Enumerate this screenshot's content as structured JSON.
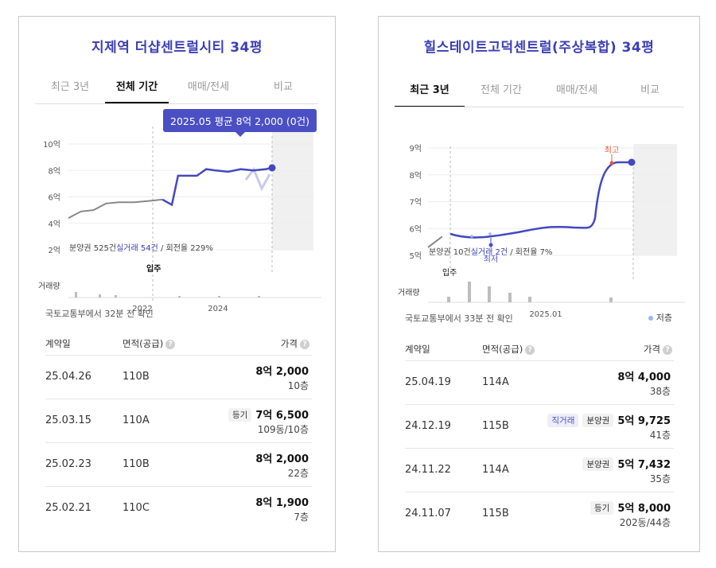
{
  "left": {
    "title": "지제역 더샵센트럴시티 34평",
    "tabs": [
      "최근 3년",
      "전체 기간",
      "매매/전세",
      "비교"
    ],
    "active_tab": 1,
    "tooltip": "2025.05 평균 8억 2,000 (0건)",
    "stats": {
      "presale": "분양권 525건",
      "actual": "실거래 54건",
      "turnover": " / 회전율 229%"
    },
    "volume_label": "거래량",
    "move_in_label": "입주",
    "source": "국토교통부에서 32분 전 확인",
    "table_headers": {
      "date": "계약일",
      "area": "면적(공급)",
      "price": "가격"
    },
    "rows": [
      {
        "date": "25.04.26",
        "area": "110B",
        "tag": "",
        "price": "8억 2,000",
        "floor": "10층"
      },
      {
        "date": "25.03.15",
        "area": "110A",
        "tag": "등기",
        "price": "7억 6,500",
        "floor": "109동/10층"
      },
      {
        "date": "25.02.23",
        "area": "110B",
        "tag": "",
        "price": "8억 2,000",
        "floor": "22층"
      },
      {
        "date": "25.02.21",
        "area": "110C",
        "tag": "",
        "price": "8억 1,900",
        "floor": "7층"
      }
    ]
  },
  "right": {
    "title": "힐스테이트고덕센트럴(주상복합) 34평",
    "tabs": [
      "최근 3년",
      "전체 기간",
      "매매/전세",
      "비교"
    ],
    "active_tab": 0,
    "stats": {
      "presale": "분양권 10건",
      "actual": "실거래 2건",
      "turnover": " / 회전율 7%"
    },
    "volume_label": "거래량",
    "move_in_label": "입주",
    "high_label": "최고",
    "low_label": "최저",
    "source": "국토교통부에서 33분 전 확인",
    "legend": "저층",
    "table_headers": {
      "date": "계약일",
      "area": "면적(공급)",
      "price": "가격"
    },
    "rows": [
      {
        "date": "25.04.19",
        "area": "114A",
        "tags": [],
        "price": "8억 4,000",
        "floor": "38층"
      },
      {
        "date": "24.12.19",
        "area": "115B",
        "tags": [
          "직거래",
          "분양권"
        ],
        "price": "5억 9,725",
        "floor": "41층"
      },
      {
        "date": "24.11.22",
        "area": "114A",
        "tags": [
          "분양권"
        ],
        "price": "5억 7,432",
        "floor": "35층"
      },
      {
        "date": "24.11.07",
        "area": "115B",
        "tags": [
          "등기"
        ],
        "price": "5억 8,000",
        "floor": "202동/44층"
      }
    ]
  },
  "colors": {
    "accent": "#3b3fb6",
    "line": "#4448c0",
    "presale_line": "#888888"
  },
  "chart_data": [
    {
      "type": "line",
      "title": "",
      "x_tick_labels": [
        "2022",
        "2024"
      ],
      "y_tick_labels": [
        "2억",
        "4억",
        "6억",
        "8억",
        "10억"
      ],
      "ylim": [
        2,
        10
      ],
      "unit": "억",
      "series": [
        {
          "values_x": [
            2018.9,
            2019.3,
            2019.7,
            2020.1,
            2020.5,
            2021.0,
            2021.5,
            2021.9
          ],
          "values_y": [
            4.4,
            4.9,
            5.0,
            5.5,
            5.6,
            5.6,
            5.7,
            5.8
          ]
        },
        {
          "values_x": [
            2021.9,
            2022.2,
            2022.4,
            2022.7,
            2023.0,
            2023.3,
            2023.6,
            2024.0,
            2024.4,
            2024.8,
            2025.2,
            2025.4
          ],
          "values_y": [
            5.8,
            5.4,
            7.6,
            7.6,
            7.6,
            8.1,
            8.0,
            7.9,
            8.1,
            8.0,
            8.1,
            8.2
          ]
        }
      ]
    },
    {
      "type": "line",
      "title": "",
      "x_tick_labels": [
        "2025.01"
      ],
      "y_tick_labels": [
        "5억",
        "6억",
        "7억",
        "8억",
        "9억"
      ],
      "ylim": [
        5,
        9
      ],
      "unit": "억",
      "series": [
        {
          "values_x": [
            2022.4,
            2022.6
          ],
          "values_y": [
            5.3,
            5.7
          ]
        },
        {
          "values_x": [
            2022.6,
            2023.1,
            2023.6,
            2024.0,
            2024.4,
            2024.8,
            2025.0,
            2025.3
          ],
          "values_y": [
            5.7,
            5.6,
            5.8,
            6.0,
            6.0,
            6.0,
            8.4,
            8.4
          ]
        }
      ],
      "high": 8.4,
      "low": 5.6
    }
  ]
}
